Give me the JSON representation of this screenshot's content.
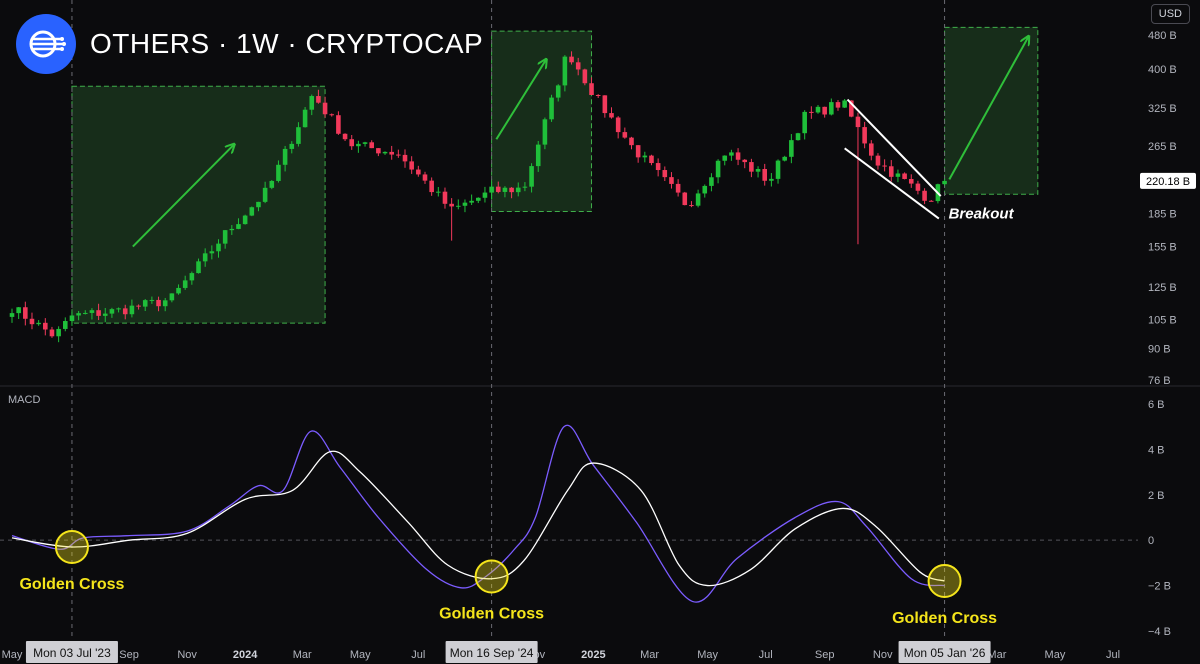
{
  "header": {
    "title": "OTHERS · 1W · CRYPTOCAP",
    "currency_button": "USD",
    "logo_icon": "cryptocap-logo-icon"
  },
  "colors": {
    "up": "#26a69a",
    "up_candle": "#1fbf3a",
    "down": "#f2395b",
    "macd_line": "#7b5cff",
    "signal_line": "#ffffff",
    "zone_fill": "#1c3a1f",
    "zone_border": "#3fae4a",
    "arrow": "#2fbf3a",
    "cross_marker": "#f5e51b"
  },
  "chart_data": [
    {
      "type": "candlestick",
      "name": "price",
      "yscale": "log",
      "ylim": [
        74,
        520
      ],
      "yticks": [
        76,
        90,
        105,
        125,
        155,
        185,
        220,
        265,
        325,
        400,
        480
      ],
      "ytick_labels": [
        "76 B",
        "90 B",
        "105 B",
        "125 B",
        "155 B",
        "185 B",
        "220 B",
        "265 B",
        "325 B",
        "400 B",
        "480 B"
      ],
      "last_price_label": "220.18 B",
      "last_price": 220.18,
      "anchors": [
        [
          "2023-05-01",
          112
        ],
        [
          "2023-06-15",
          96
        ],
        [
          "2023-07-03",
          107
        ],
        [
          "2023-08-20",
          110
        ],
        [
          "2023-10-15",
          117
        ],
        [
          "2023-12-10",
          165
        ],
        [
          "2024-01-25",
          210
        ],
        [
          "2024-03-12",
          350
        ],
        [
          "2024-04-20",
          268
        ],
        [
          "2024-06-10",
          255
        ],
        [
          "2024-08-05",
          188
        ],
        [
          "2024-09-16",
          208
        ],
        [
          "2024-10-20",
          212
        ],
        [
          "2024-12-05",
          440
        ],
        [
          "2025-01-05",
          340
        ],
        [
          "2025-02-10",
          265
        ],
        [
          "2025-04-10",
          193
        ],
        [
          "2025-05-20",
          258
        ],
        [
          "2025-07-05",
          220
        ],
        [
          "2025-08-10",
          310
        ],
        [
          "2025-09-20",
          335
        ],
        [
          "2025-10-25",
          245
        ],
        [
          "2025-12-20",
          200
        ],
        [
          "2026-01-05",
          220
        ]
      ],
      "wicks": [
        {
          "date": "2025-10-06",
          "low": 157
        },
        {
          "date": "2024-08-05",
          "low": 160
        }
      ],
      "zones": [
        {
          "start": "2023-07-03",
          "end": "2024-03-25",
          "low": 103,
          "high": 365
        },
        {
          "start": "2024-09-16",
          "end": "2024-12-30",
          "low": 187,
          "high": 490
        },
        {
          "start": "2026-01-05",
          "end": "2026-04-13",
          "low": 205,
          "high": 500
        }
      ],
      "arrows": [
        {
          "from": [
            "2023-09-05",
            155
          ],
          "to": [
            "2023-12-20",
            267
          ]
        },
        {
          "from": [
            "2024-09-21",
            275
          ],
          "to": [
            "2024-11-12",
            420
          ]
        },
        {
          "from": [
            "2026-01-10",
            222
          ],
          "to": [
            "2026-04-03",
            475
          ]
        }
      ],
      "wedge_lines": [
        {
          "from": [
            "2025-09-25",
            340
          ],
          "to": [
            "2026-01-01",
            203
          ]
        },
        {
          "from": [
            "2025-09-22",
            262
          ],
          "to": [
            "2025-12-30",
            180
          ]
        }
      ],
      "annotations": [
        "Breakout"
      ]
    },
    {
      "type": "line",
      "name": "MACD",
      "ylim": [
        -4.4,
        6.4
      ],
      "yticks": [
        -4,
        -2,
        0,
        2,
        4,
        6
      ],
      "ytick_labels": [
        "−4 B",
        "−2 B",
        "0",
        "2 B",
        "4 B",
        "6 B"
      ],
      "series": [
        {
          "name": "MACD",
          "points": [
            [
              "2023-05-01",
              0.2
            ],
            [
              "2023-06-20",
              -0.4
            ],
            [
              "2023-07-15",
              0.1
            ],
            [
              "2023-09-01",
              0.2
            ],
            [
              "2023-11-01",
              0.4
            ],
            [
              "2023-12-15",
              1.5
            ],
            [
              "2024-01-15",
              2.4
            ],
            [
              "2024-02-10",
              2.2
            ],
            [
              "2024-03-10",
              4.8
            ],
            [
              "2024-04-10",
              3.2
            ],
            [
              "2024-05-20",
              1.0
            ],
            [
              "2024-07-10",
              -1.3
            ],
            [
              "2024-08-15",
              -2.1
            ],
            [
              "2024-09-10",
              -1.6
            ],
            [
              "2024-10-10",
              -0.4
            ],
            [
              "2024-11-01",
              1.0
            ],
            [
              "2024-12-01",
              5.0
            ],
            [
              "2025-01-01",
              3.3
            ],
            [
              "2025-02-15",
              0.8
            ],
            [
              "2025-04-15",
              -2.7
            ],
            [
              "2025-06-01",
              -0.8
            ],
            [
              "2025-08-01",
              1.0
            ],
            [
              "2025-09-15",
              1.7
            ],
            [
              "2025-10-15",
              0.6
            ],
            [
              "2025-12-01",
              -1.7
            ],
            [
              "2026-01-05",
              -2.0
            ]
          ]
        },
        {
          "name": "Signal",
          "points": [
            [
              "2023-05-01",
              0.1
            ],
            [
              "2023-07-03",
              -0.3
            ],
            [
              "2023-09-01",
              0.0
            ],
            [
              "2023-11-01",
              0.3
            ],
            [
              "2024-01-01",
              1.8
            ],
            [
              "2024-02-20",
              2.2
            ],
            [
              "2024-03-30",
              3.9
            ],
            [
              "2024-05-01",
              3.0
            ],
            [
              "2024-06-20",
              0.8
            ],
            [
              "2024-08-01",
              -1.1
            ],
            [
              "2024-09-16",
              -1.7
            ],
            [
              "2024-10-20",
              -0.9
            ],
            [
              "2024-12-05",
              2.2
            ],
            [
              "2025-01-01",
              3.4
            ],
            [
              "2025-02-20",
              2.2
            ],
            [
              "2025-04-01",
              -1.1
            ],
            [
              "2025-05-01",
              -2.0
            ],
            [
              "2025-06-15",
              -1.3
            ],
            [
              "2025-08-01",
              0.5
            ],
            [
              "2025-09-20",
              1.4
            ],
            [
              "2025-10-25",
              0.6
            ],
            [
              "2025-12-10",
              -1.4
            ],
            [
              "2026-01-05",
              -1.8
            ]
          ]
        }
      ],
      "markers": [
        {
          "date": "2023-07-03",
          "value": -0.3,
          "label": "Golden Cross"
        },
        {
          "date": "2024-09-16",
          "value": -1.6,
          "label": "Golden Cross"
        },
        {
          "date": "2026-01-05",
          "value": -1.8,
          "label": "Golden Cross"
        }
      ]
    }
  ],
  "x_axis": {
    "ticks": [
      {
        "date": "2023-05-01",
        "label": "May",
        "bold": false
      },
      {
        "date": "2023-09-01",
        "label": "Sep",
        "bold": false
      },
      {
        "date": "2023-11-01",
        "label": "Nov",
        "bold": false
      },
      {
        "date": "2024-01-01",
        "label": "2024",
        "bold": true
      },
      {
        "date": "2024-03-01",
        "label": "Mar",
        "bold": false
      },
      {
        "date": "2024-05-01",
        "label": "May",
        "bold": false
      },
      {
        "date": "2024-07-01",
        "label": "Jul",
        "bold": false
      },
      {
        "date": "2024-11-01",
        "label": "Nov",
        "bold": false
      },
      {
        "date": "2025-01-01",
        "label": "2025",
        "bold": true
      },
      {
        "date": "2025-03-01",
        "label": "Mar",
        "bold": false
      },
      {
        "date": "2025-05-01",
        "label": "May",
        "bold": false
      },
      {
        "date": "2025-07-01",
        "label": "Jul",
        "bold": false
      },
      {
        "date": "2025-09-01",
        "label": "Sep",
        "bold": false
      },
      {
        "date": "2025-11-01",
        "label": "Nov",
        "bold": false
      },
      {
        "date": "2026-03-01",
        "label": "Mar",
        "bold": false
      },
      {
        "date": "2026-05-01",
        "label": "May",
        "bold": false
      },
      {
        "date": "2026-07-01",
        "label": "Jul",
        "bold": false
      }
    ],
    "crosshair_labels": [
      {
        "date": "2023-07-03",
        "label": "Mon 03 Jul '23"
      },
      {
        "date": "2024-09-16",
        "label": "Mon 16 Sep '24"
      },
      {
        "date": "2026-01-05",
        "label": "Mon 05 Jan '26"
      }
    ]
  },
  "macd_label": "MACD"
}
